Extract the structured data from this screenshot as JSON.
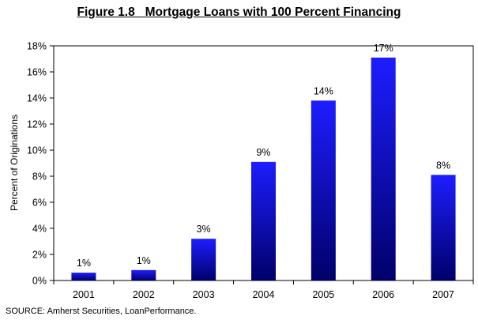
{
  "chart_data": {
    "type": "bar",
    "title": "Figure 1.8   Mortgage Loans with 100 Percent Financing",
    "xlabel": "",
    "ylabel": "Percent of Originations",
    "categories": [
      "2001",
      "2002",
      "2003",
      "2004",
      "2005",
      "2006",
      "2007"
    ],
    "values": [
      0.6,
      0.8,
      3.2,
      9.1,
      13.8,
      17.1,
      8.1
    ],
    "data_labels": [
      "1%",
      "1%",
      "3%",
      "9%",
      "14%",
      "17%",
      "8%"
    ],
    "ylim": [
      0,
      18
    ],
    "yticks": [
      0,
      2,
      4,
      6,
      8,
      10,
      12,
      14,
      16,
      18
    ],
    "ytick_labels": [
      "0%",
      "2%",
      "4%",
      "6%",
      "8%",
      "10%",
      "12%",
      "14%",
      "16%",
      "18%"
    ],
    "grid": false,
    "legend": "none",
    "bar_color_top": "#1d1dff",
    "bar_color_bottom": "#00006a",
    "source": "SOURCE: Amherst Securities, LoanPerformance."
  }
}
